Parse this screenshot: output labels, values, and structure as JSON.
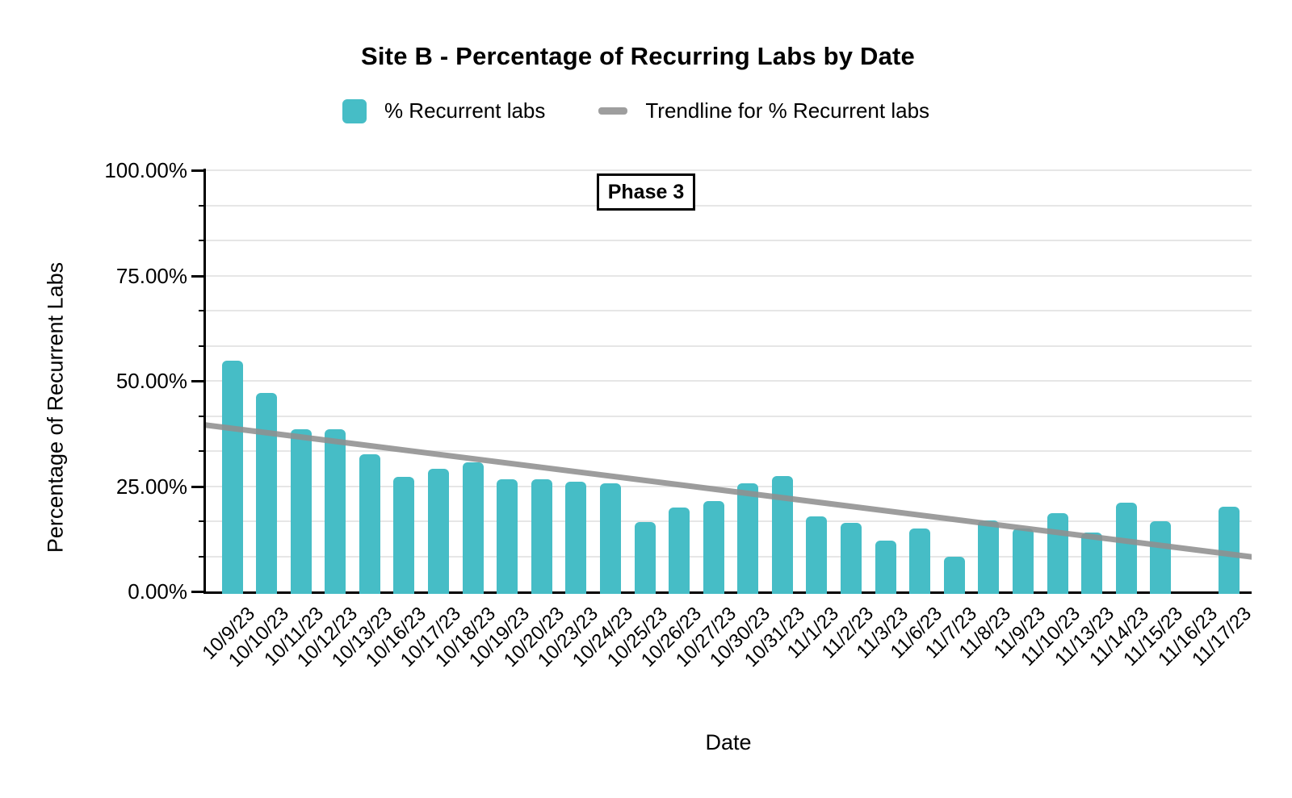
{
  "title": "Site B - Percentage of Recurring Labs by Date",
  "legend": {
    "items": [
      {
        "label": "% Recurrent labs",
        "swatch": "bar-swatch",
        "color": "#46bdc6"
      },
      {
        "label": "Trendline for % Recurrent labs",
        "swatch": "line-swatch",
        "color": "#9e9e9e"
      }
    ]
  },
  "annotation": {
    "text": "Phase 3"
  },
  "axes": {
    "y_title": "Percentage of Recurrent Labs",
    "x_title": "Date",
    "y_tick_labels": [
      "0.00%",
      "25.00%",
      "50.00%",
      "75.00%",
      "100.00%"
    ]
  },
  "chart_data": {
    "type": "bar",
    "title": "Site B - Percentage of Recurring Labs by Date",
    "xlabel": "Date",
    "ylabel": "Percentage of Recurrent Labs",
    "categories": [
      "10/9/23",
      "10/10/23",
      "10/11/23",
      "10/12/23",
      "10/13/23",
      "10/16/23",
      "10/17/23",
      "10/18/23",
      "10/19/23",
      "10/20/23",
      "10/23/23",
      "10/24/23",
      "10/25/23",
      "10/26/23",
      "10/27/23",
      "10/30/23",
      "10/31/23",
      "11/1/23",
      "11/2/23",
      "11/3/23",
      "11/6/23",
      "11/7/23",
      "11/8/23",
      "11/9/23",
      "11/10/23",
      "11/13/23",
      "11/14/23",
      "11/15/23",
      "11/16/23",
      "11/17/23"
    ],
    "series": [
      {
        "name": "% Recurrent labs",
        "color": "#46bdc6",
        "values": [
          54.7,
          47.1,
          38.5,
          38.5,
          32.6,
          27.2,
          29.1,
          30.7,
          26.6,
          26.6,
          26.1,
          25.6,
          16.5,
          20.0,
          21.5,
          25.7,
          27.3,
          17.9,
          16.2,
          12.0,
          14.9,
          8.3,
          16.9,
          14.9,
          18.5,
          13.9,
          21.0,
          16.6,
          0,
          20.1
        ]
      }
    ],
    "trendline": {
      "name": "Trendline for % Recurrent labs",
      "color": "#8f8f8f",
      "start_value_pct": 39.5,
      "end_value_pct": 8.2
    },
    "ylim": [
      0,
      100
    ],
    "y_major_ticks": [
      0,
      25,
      50,
      75,
      100
    ],
    "y_minor_divisions_per_major": 3,
    "grid": true,
    "legend_position": "top",
    "annotation": "Phase 3"
  }
}
